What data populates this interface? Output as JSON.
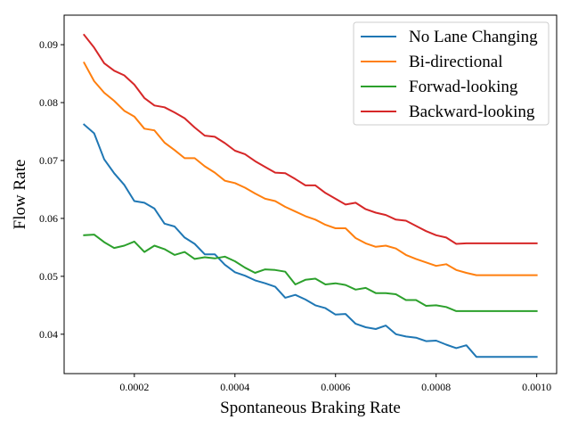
{
  "chart_data": {
    "type": "line",
    "xlabel": "Spontaneous Braking Rate",
    "ylabel": "Flow Rate",
    "xlim": [
      6.04e-05,
      0.0010396
    ],
    "ylim": [
      0.0332,
      0.0951
    ],
    "xticks": [
      0.0002,
      0.0004,
      0.0006,
      0.0008,
      0.001
    ],
    "xtick_labels": [
      "0.0002",
      "0.0004",
      "0.0006",
      "0.0008",
      "0.0010"
    ],
    "yticks": [
      0.04,
      0.05,
      0.06,
      0.07,
      0.08,
      0.09
    ],
    "ytick_labels": [
      "0.04",
      "0.05",
      "0.06",
      "0.07",
      "0.08",
      "0.09"
    ],
    "legend_position": "top-right",
    "grid": false,
    "x": [
      0.0001,
      0.00012,
      0.00014,
      0.00016,
      0.00018,
      0.0002,
      0.00022,
      0.00024,
      0.00026,
      0.00028,
      0.0003,
      0.00032,
      0.00034,
      0.00036,
      0.00038,
      0.0004,
      0.00042,
      0.00044,
      0.00046,
      0.00048,
      0.0005,
      0.00052,
      0.00054,
      0.00056,
      0.00058,
      0.0006,
      0.00062,
      0.00064,
      0.00066,
      0.00068,
      0.0007,
      0.00072,
      0.00074,
      0.00076,
      0.00078,
      0.0008,
      0.00082,
      0.00084,
      0.00086,
      0.00088,
      0.0009,
      0.00092,
      0.00094,
      0.00096,
      0.00098,
      0.001
    ],
    "series": [
      {
        "name": "No Lane Changing",
        "color": "#1f77b4",
        "values": [
          0.0762,
          0.0747,
          0.0702,
          0.0678,
          0.0658,
          0.063,
          0.0627,
          0.0617,
          0.0591,
          0.0586,
          0.0567,
          0.0556,
          0.0538,
          0.0538,
          0.052,
          0.0507,
          0.0501,
          0.0493,
          0.0488,
          0.0482,
          0.0463,
          0.0468,
          0.046,
          0.045,
          0.0445,
          0.0434,
          0.0435,
          0.0418,
          0.0412,
          0.0409,
          0.0415,
          0.04,
          0.0396,
          0.0394,
          0.0388,
          0.0389,
          0.0382,
          0.0376,
          0.0381,
          0.0361,
          0.0361,
          0.0361,
          0.0361,
          0.0361,
          0.0361,
          0.0361
        ]
      },
      {
        "name": "Bi-directional",
        "color": "#ff7f0e",
        "values": [
          0.0869,
          0.0837,
          0.0817,
          0.0803,
          0.0786,
          0.0776,
          0.0755,
          0.0752,
          0.0731,
          0.0718,
          0.0704,
          0.0704,
          0.069,
          0.0679,
          0.0665,
          0.0661,
          0.0653,
          0.0643,
          0.0634,
          0.063,
          0.062,
          0.0612,
          0.0604,
          0.0598,
          0.0589,
          0.0583,
          0.0583,
          0.0566,
          0.0557,
          0.0551,
          0.0553,
          0.0548,
          0.0537,
          0.053,
          0.0524,
          0.0518,
          0.0521,
          0.0511,
          0.0506,
          0.0502,
          0.0502,
          0.0502,
          0.0502,
          0.0502,
          0.0502,
          0.0502
        ]
      },
      {
        "name": "Forwad-looking",
        "color": "#2ca02c",
        "values": [
          0.0571,
          0.0572,
          0.0559,
          0.0549,
          0.0553,
          0.056,
          0.0542,
          0.0553,
          0.0547,
          0.0537,
          0.0542,
          0.053,
          0.0533,
          0.0531,
          0.0534,
          0.0526,
          0.0515,
          0.0506,
          0.0512,
          0.0511,
          0.0508,
          0.0486,
          0.0494,
          0.0496,
          0.0486,
          0.0488,
          0.0485,
          0.0477,
          0.048,
          0.0471,
          0.0471,
          0.0469,
          0.0459,
          0.0459,
          0.0449,
          0.045,
          0.0447,
          0.044,
          0.044,
          0.044,
          0.044,
          0.044,
          0.044,
          0.044,
          0.044,
          0.044
        ]
      },
      {
        "name": "Backward-looking",
        "color": "#d62728",
        "values": [
          0.0917,
          0.0895,
          0.0868,
          0.0855,
          0.0847,
          0.0831,
          0.0808,
          0.0795,
          0.0792,
          0.0783,
          0.0773,
          0.0757,
          0.0743,
          0.0741,
          0.073,
          0.0717,
          0.0711,
          0.0699,
          0.0689,
          0.0679,
          0.0678,
          0.0668,
          0.0657,
          0.0657,
          0.0644,
          0.0634,
          0.0624,
          0.0627,
          0.0616,
          0.061,
          0.0606,
          0.0598,
          0.0596,
          0.0587,
          0.0578,
          0.0571,
          0.0567,
          0.0556,
          0.0557,
          0.0557,
          0.0557,
          0.0557,
          0.0557,
          0.0557,
          0.0557,
          0.0557
        ]
      }
    ]
  }
}
